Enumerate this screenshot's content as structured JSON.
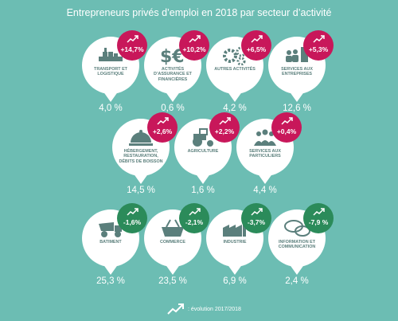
{
  "title": "Entrepreneurs privés d’emploi en 2018 par secteur d’activité",
  "rows": [
    [
      {
        "label": "Transport et logistique",
        "evolution": "+14,7%",
        "direction": "up",
        "share": "4,0 %",
        "icon": "ship-icon"
      },
      {
        "label": "Activités d’assurance et financières",
        "evolution": "+10,2%",
        "direction": "up",
        "share": "0,6 %",
        "icon": "currency-icon"
      },
      {
        "label": "Autres activités",
        "evolution": "+6,5%",
        "direction": "up",
        "share": "4,2 %",
        "icon": "gears-icon"
      },
      {
        "label": "Services aux entreprises",
        "evolution": "+5,3%",
        "direction": "up",
        "share": "12,6 %",
        "icon": "business-people-icon"
      }
    ],
    [
      {
        "label": "Hébergement, restauration, débits de boisson",
        "evolution": "+2,6%",
        "direction": "up",
        "share": "14,5 %",
        "icon": "dish-icon"
      },
      {
        "label": "Agriculture",
        "evolution": "+2,2%",
        "direction": "up",
        "share": "1,6 %",
        "icon": "tractor-icon"
      },
      {
        "label": "Services aux particuliers",
        "evolution": "+0,4%",
        "direction": "up",
        "share": "4,4 %",
        "icon": "people-icon"
      }
    ],
    [
      {
        "label": "Batiment",
        "evolution": "-1,6%",
        "direction": "down",
        "share": "25,3 %",
        "icon": "dump-truck-icon"
      },
      {
        "label": "Commerce",
        "evolution": "-2,1%",
        "direction": "down",
        "share": "23,5 %",
        "icon": "basket-icon"
      },
      {
        "label": "Industrie",
        "evolution": "-3,7%",
        "direction": "down",
        "share": "6,9 %",
        "icon": "factory-icon"
      },
      {
        "label": "Information et communication",
        "evolution": "-7,9 %",
        "direction": "down",
        "share": "2,4 %",
        "icon": "speech-bubbles-icon"
      }
    ]
  ],
  "legend": {
    "text": ": évolution 2017/2018",
    "icon": "trend-arrow-icon"
  },
  "colors": {
    "background": "#6cbdb3",
    "increase": "#c8175a",
    "decrease": "#2b8b5a",
    "icon": "#5b7f7c"
  }
}
